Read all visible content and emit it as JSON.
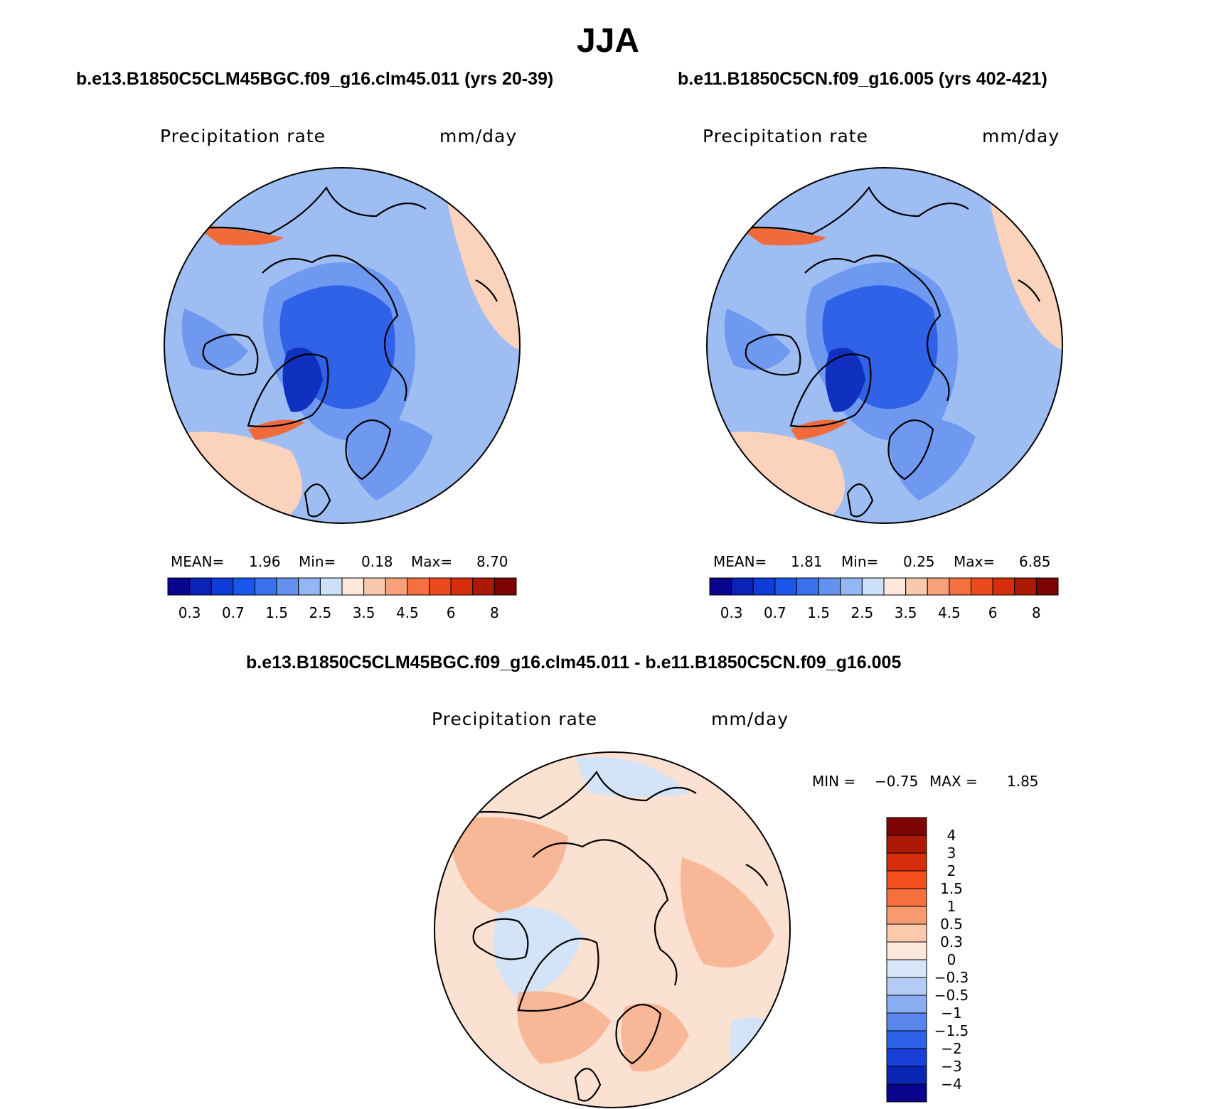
{
  "title": "JJA",
  "panels": [
    {
      "case_title": "b.e13.B1850C5CLM45BGC.f09_g16.clm45.011 (yrs 20-39)",
      "variable": "Precipitation rate",
      "units": "mm/day",
      "stats": {
        "mean_label": "MEAN=",
        "mean": "1.96",
        "min_label": "Min=",
        "min": "0.18",
        "max_label": "Max=",
        "max": "8.70"
      }
    },
    {
      "case_title": "b.e11.B1850C5CN.f09_g16.005 (yrs 402-421)",
      "variable": "Precipitation rate",
      "units": "mm/day",
      "stats": {
        "mean_label": "MEAN=",
        "mean": "1.81",
        "min_label": "Min=",
        "min": "0.25",
        "max_label": "Max=",
        "max": "6.85"
      }
    }
  ],
  "diff_panel": {
    "case_title": "b.e13.B1850C5CLM45BGC.f09_g16.clm45.011 - b.e11.B1850C5CN.f09_g16.005",
    "variable": "Precipitation rate",
    "units": "mm/day",
    "minmax": {
      "min_label": "MIN =",
      "min": "−0.75",
      "max_label": "MAX =",
      "max": "1.85"
    }
  },
  "colorbar_main": {
    "colors": [
      "#08048c",
      "#0a22b8",
      "#0d3dd6",
      "#1a56ea",
      "#3a72ee",
      "#6492ee",
      "#94b6f2",
      "#cce0f8",
      "#fde8dc",
      "#fac8ac",
      "#f7a07a",
      "#f4703e",
      "#ec4a1c",
      "#d42e0c",
      "#ac1a06",
      "#7c0402"
    ],
    "labels": [
      "0.3",
      "0.7",
      "1.5",
      "2.5",
      "3.5",
      "4.5",
      "6",
      "8"
    ]
  },
  "colorbar_diff": {
    "colors": [
      "#7c0402",
      "#ac1a06",
      "#d42e0c",
      "#f4501e",
      "#f4703e",
      "#f79a70",
      "#fbcaac",
      "#fde8dc",
      "#d6e6f8",
      "#b4ccf4",
      "#8aacf0",
      "#5a86ec",
      "#2e62e8",
      "#1840d8",
      "#0c26b4",
      "#08058c"
    ],
    "labels": [
      "4",
      "3",
      "2",
      "1.5",
      "1",
      "0.5",
      "0.3",
      "0",
      "−0.3",
      "−0.5",
      "−1",
      "−1.5",
      "−2",
      "−3",
      "−4"
    ]
  },
  "map_colors": {
    "main_base": "#9ebdf3",
    "main_mid": "#6f99f0",
    "main_deep": "#2f62e6",
    "main_dark": "#1030c0",
    "main_warm": "#fbd2bc",
    "main_hot": "#f06a3a",
    "diff_base": "#fbe1d2",
    "diff_warm": "#f8b898",
    "diff_cool": "#d4e4f8",
    "coast": "#000000"
  }
}
